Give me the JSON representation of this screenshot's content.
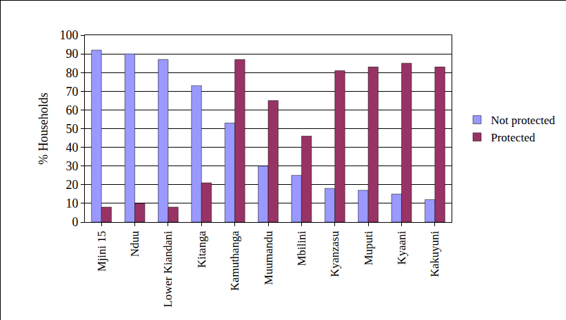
{
  "chart_data": {
    "type": "bar",
    "y_label": "% Households",
    "categories": [
      "Mjini 15",
      "Nduu",
      "Lower Kiandani",
      "Kitanga",
      "Kamuthanga",
      "Muumandu",
      "Mbilini",
      "Kyanzasu",
      "Muputi",
      "Kyaani",
      "Kakuyuni"
    ],
    "series": [
      {
        "name": "Not protected",
        "color": "#9999ff",
        "values": [
          92,
          90,
          87,
          73,
          53,
          30,
          25,
          18,
          17,
          15,
          12
        ]
      },
      {
        "name": "Protected",
        "color": "#993366",
        "values": [
          8,
          10,
          8,
          21,
          87,
          65,
          46,
          81,
          83,
          85,
          83
        ]
      }
    ],
    "ylim": [
      0,
      100
    ],
    "yticks": [
      0,
      10,
      20,
      30,
      40,
      50,
      60,
      70,
      80,
      90,
      100
    ],
    "grid": true,
    "legend": "right"
  }
}
